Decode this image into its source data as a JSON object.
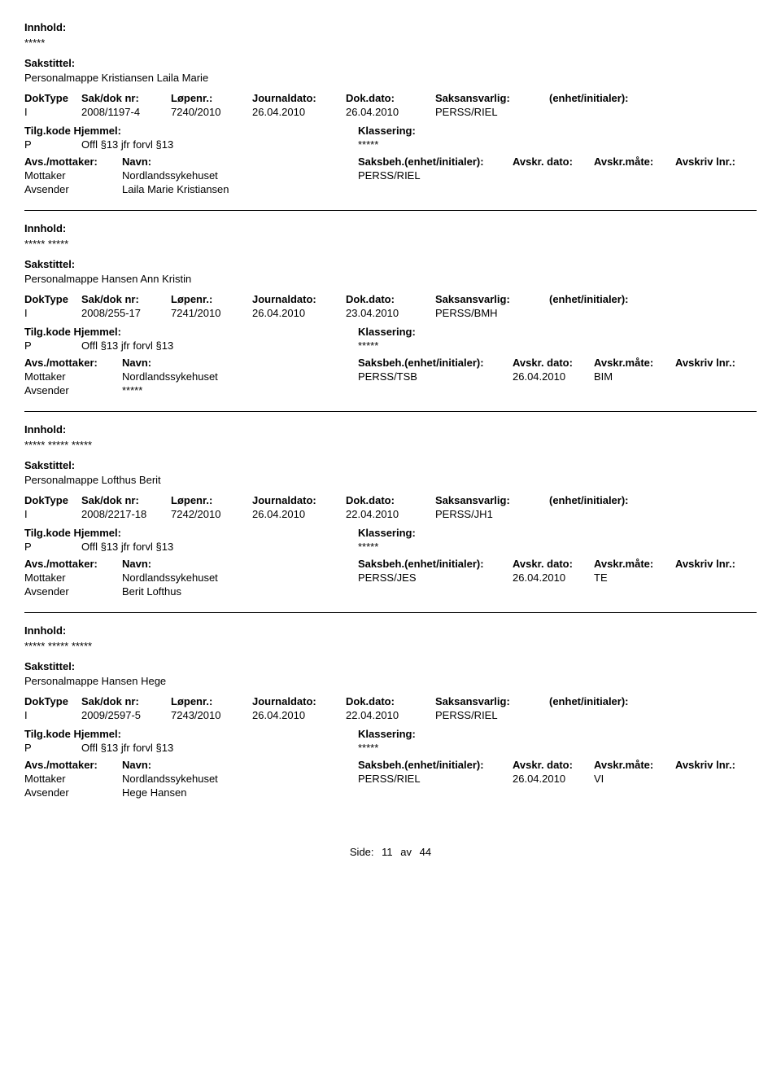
{
  "labels": {
    "innhold": "Innhold:",
    "sakstittel": "Sakstittel:",
    "doktype": "DokType",
    "sakdok": "Sak/dok nr:",
    "lopenr": "Løpenr.:",
    "journaldato": "Journaldato:",
    "dokdato": "Dok.dato:",
    "saksansvarlig": "Saksansvarlig:",
    "enhetinitialer": "(enhet/initialer):",
    "tilgkode": "Tilg.kode",
    "hjemmel": "Hjemmel:",
    "klassering": "Klassering:",
    "avsmottaker": "Avs./mottaker:",
    "navn": "Navn:",
    "saksbeh": "Saksbeh.(enhet/initialer):",
    "avskrdato": "Avskr. dato:",
    "avskrmate": "Avskr.måte:",
    "avskrivlnr": "Avskriv lnr.:",
    "mottaker": "Mottaker",
    "avsender": "Avsender",
    "side": "Side:",
    "av": "av"
  },
  "page": {
    "current": "11",
    "total": "44"
  },
  "records": [
    {
      "innhold": "*****",
      "sakstittel": "Personalmappe Kristiansen Laila Marie",
      "doktype": "I",
      "sakdok": "2008/1197-4",
      "lopenr": "7240/2010",
      "journaldato": "26.04.2010",
      "dokdato": "26.04.2010",
      "saksansvarlig": "PERSS/RIEL",
      "tilgkode": "P",
      "hjemmel": "Offl §13 jfr forvl §13",
      "klassering": "*****",
      "mottakerNavn": "Nordlandssykehuset",
      "saksbeh": "PERSS/RIEL",
      "avskrdato": "",
      "avskrmate": "",
      "avsenderNavn": "Laila Marie Kristiansen"
    },
    {
      "innhold": "***** *****",
      "sakstittel": "Personalmappe Hansen Ann Kristin",
      "doktype": "I",
      "sakdok": "2008/255-17",
      "lopenr": "7241/2010",
      "journaldato": "26.04.2010",
      "dokdato": "23.04.2010",
      "saksansvarlig": "PERSS/BMH",
      "tilgkode": "P",
      "hjemmel": "Offl §13 jfr forvl §13",
      "klassering": "*****",
      "mottakerNavn": "Nordlandssykehuset",
      "saksbeh": "PERSS/TSB",
      "avskrdato": "26.04.2010",
      "avskrmate": "BIM",
      "avsenderNavn": "*****"
    },
    {
      "innhold": "***** ***** *****",
      "sakstittel": "Personalmappe Lofthus Berit",
      "doktype": "I",
      "sakdok": "2008/2217-18",
      "lopenr": "7242/2010",
      "journaldato": "26.04.2010",
      "dokdato": "22.04.2010",
      "saksansvarlig": "PERSS/JH1",
      "tilgkode": "P",
      "hjemmel": "Offl §13 jfr forvl §13",
      "klassering": "*****",
      "mottakerNavn": "Nordlandssykehuset",
      "saksbeh": "PERSS/JES",
      "avskrdato": "26.04.2010",
      "avskrmate": "TE",
      "avsenderNavn": "Berit Lofthus"
    },
    {
      "innhold": "***** ***** *****",
      "sakstittel": "Personalmappe Hansen Hege",
      "doktype": "I",
      "sakdok": "2009/2597-5",
      "lopenr": "7243/2010",
      "journaldato": "26.04.2010",
      "dokdato": "22.04.2010",
      "saksansvarlig": "PERSS/RIEL",
      "tilgkode": "P",
      "hjemmel": "Offl §13 jfr forvl §13",
      "klassering": "*****",
      "mottakerNavn": "Nordlandssykehuset",
      "saksbeh": "PERSS/RIEL",
      "avskrdato": "26.04.2010",
      "avskrmate": "VI",
      "avsenderNavn": "Hege Hansen"
    }
  ]
}
